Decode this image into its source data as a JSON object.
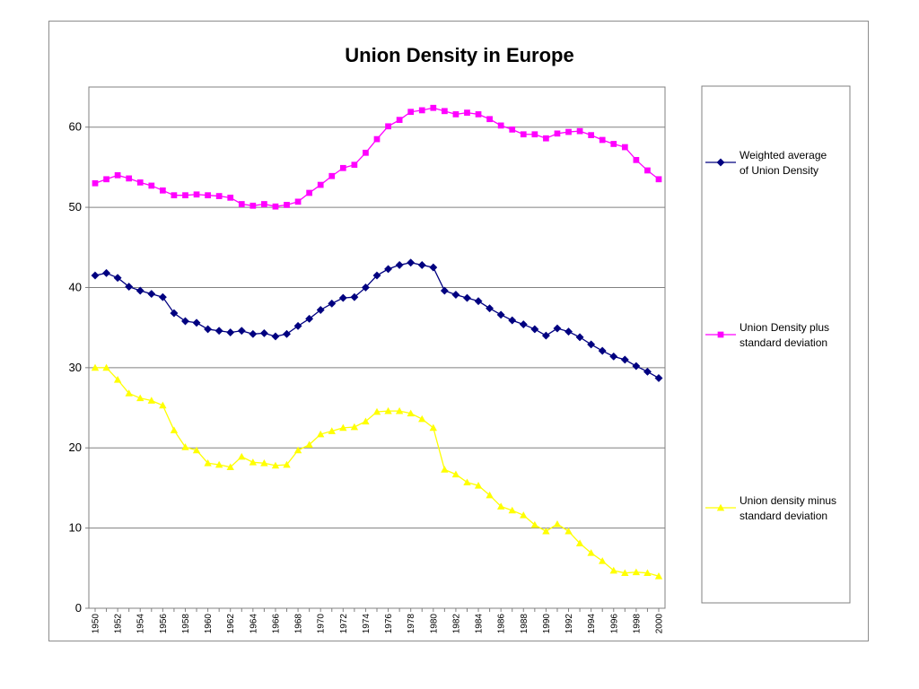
{
  "chart_data": {
    "type": "line",
    "title": "Union Density in Europe",
    "xlabel": "",
    "ylabel": "",
    "ylim": [
      0,
      65
    ],
    "yticks": [
      0,
      10,
      20,
      30,
      40,
      50,
      60
    ],
    "x": [
      1950,
      1951,
      1952,
      1953,
      1954,
      1955,
      1956,
      1957,
      1958,
      1959,
      1960,
      1961,
      1962,
      1963,
      1964,
      1965,
      1966,
      1967,
      1968,
      1969,
      1970,
      1971,
      1972,
      1973,
      1974,
      1975,
      1976,
      1977,
      1978,
      1979,
      1980,
      1981,
      1982,
      1983,
      1984,
      1985,
      1986,
      1987,
      1988,
      1989,
      1990,
      1991,
      1992,
      1993,
      1994,
      1995,
      1996,
      1997,
      1998,
      1999,
      2000
    ],
    "xtick_labels": [
      "1950",
      "1952",
      "1954",
      "1956",
      "1958",
      "1960",
      "1962",
      "1964",
      "1966",
      "1968",
      "1970",
      "1972",
      "1974",
      "1976",
      "1978",
      "1980",
      "1982",
      "1984",
      "1986",
      "1988",
      "1990",
      "1992",
      "1994",
      "1996",
      "1998",
      "2000"
    ],
    "grid": "horizontal",
    "legend_position": "right",
    "series": [
      {
        "name": "Weighted average of Union Density",
        "legend_lines": [
          "Weighted average",
          "of Union Density"
        ],
        "color": "#000080",
        "marker": "diamond",
        "values": [
          41.5,
          41.8,
          41.2,
          40.1,
          39.6,
          39.2,
          38.8,
          36.8,
          35.8,
          35.6,
          34.8,
          34.6,
          34.4,
          34.6,
          34.2,
          34.3,
          33.9,
          34.2,
          35.2,
          36.1,
          37.2,
          38.0,
          38.7,
          38.8,
          40.0,
          41.5,
          42.3,
          42.8,
          43.1,
          42.8,
          42.5,
          39.6,
          39.1,
          38.7,
          38.3,
          37.4,
          36.6,
          35.9,
          35.4,
          34.8,
          34.0,
          34.9,
          34.5,
          33.8,
          32.9,
          32.1,
          31.4,
          31.0,
          30.2,
          29.5,
          28.7
        ]
      },
      {
        "name": "Union Density plus standard deviation",
        "legend_lines": [
          "Union Density plus",
          "standard deviation"
        ],
        "color": "#ff00ff",
        "marker": "square",
        "values": [
          53.0,
          53.5,
          54.0,
          53.6,
          53.1,
          52.7,
          52.1,
          51.5,
          51.5,
          51.6,
          51.5,
          51.4,
          51.2,
          50.4,
          50.2,
          50.4,
          50.1,
          50.3,
          50.7,
          51.8,
          52.8,
          53.9,
          54.9,
          55.3,
          56.8,
          58.5,
          60.1,
          60.9,
          61.9,
          62.1,
          62.4,
          62.0,
          61.6,
          61.8,
          61.6,
          61.0,
          60.2,
          59.7,
          59.1,
          59.1,
          58.6,
          59.2,
          59.4,
          59.5,
          59.0,
          58.4,
          57.9,
          57.5,
          55.9,
          54.6,
          53.5
        ]
      },
      {
        "name": "Union density minus standard deviation",
        "legend_lines": [
          "Union density minus",
          "standard deviation"
        ],
        "color": "#ffff00",
        "marker": "triangle",
        "values": [
          30.0,
          30.0,
          28.5,
          26.8,
          26.2,
          25.9,
          25.3,
          22.2,
          20.1,
          19.7,
          18.1,
          17.9,
          17.6,
          18.9,
          18.2,
          18.1,
          17.8,
          17.9,
          19.7,
          20.4,
          21.7,
          22.1,
          22.5,
          22.6,
          23.3,
          24.5,
          24.6,
          24.6,
          24.3,
          23.6,
          22.5,
          17.3,
          16.7,
          15.7,
          15.3,
          14.1,
          12.7,
          12.2,
          11.6,
          10.4,
          9.6,
          10.5,
          9.6,
          8.1,
          6.9,
          5.9,
          4.7,
          4.4,
          4.5,
          4.4,
          4.0
        ]
      }
    ]
  }
}
